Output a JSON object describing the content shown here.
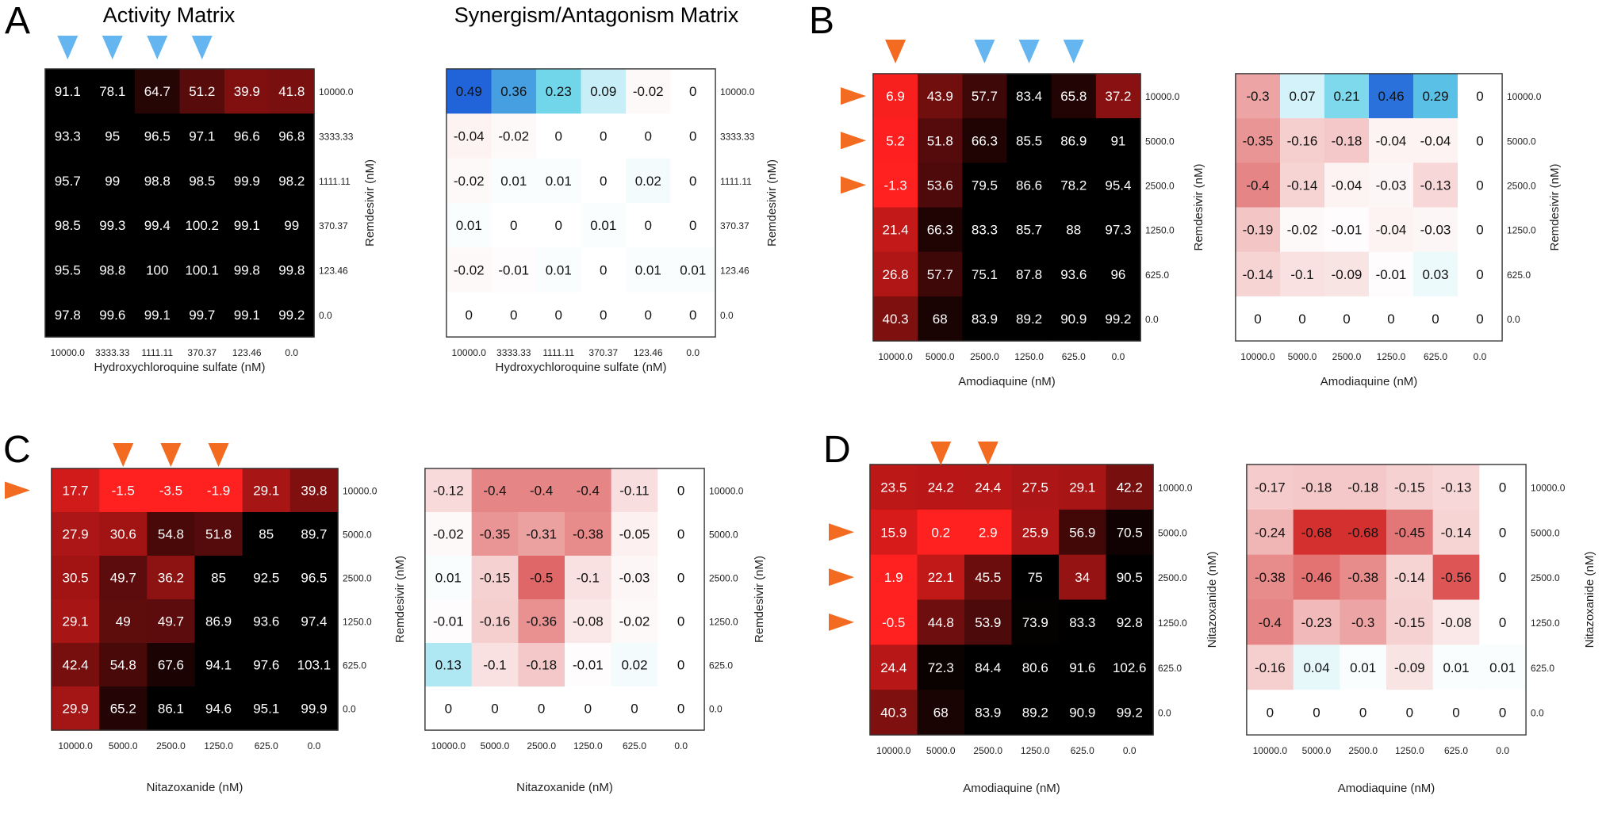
{
  "figure": {
    "panel_letters": [
      "A",
      "B",
      "C",
      "D"
    ],
    "headers": {
      "activity": "Activity Matrix",
      "synergy": "Synergism/Antagonism Matrix"
    },
    "colors": {
      "arrow_blue": "#64b5f0",
      "arrow_orange": "#f26b21",
      "activity_high": "#000000",
      "activity_low": "#ff2020",
      "synergy_pos": "#1e5fd8",
      "synergy_neg": "#d42a2a"
    }
  },
  "chart_data": [
    {
      "type": "heatmap",
      "panel": "A",
      "matrix": "activity",
      "xlabel": "Hydroxychloroquine sulfate (nM)",
      "ylabel": "Remdesivir (nM)",
      "x_ticks": [
        "10000.0",
        "3333.33",
        "1111.11",
        "370.37",
        "123.46",
        "0.0"
      ],
      "y_ticks": [
        "10000.0",
        "3333.33",
        "1111.11",
        "370.37",
        "123.46",
        "0.0"
      ],
      "values": [
        [
          91.1,
          78.1,
          64.7,
          51.2,
          39.9,
          41.8
        ],
        [
          93.3,
          95,
          96.5,
          97.1,
          96.6,
          96.8
        ],
        [
          95.7,
          99,
          98.8,
          98.5,
          99.9,
          98.2
        ],
        [
          98.5,
          99.3,
          99.4,
          100.2,
          99.1,
          99
        ],
        [
          95.5,
          98.8,
          100,
          100.1,
          99.8,
          99.8
        ],
        [
          97.8,
          99.6,
          99.1,
          99.7,
          99.1,
          99.2
        ]
      ],
      "markers_top": {
        "color": "blue",
        "columns": [
          0,
          1,
          2,
          3
        ]
      },
      "markers_left": {
        "color": "orange",
        "rows": []
      }
    },
    {
      "type": "heatmap",
      "panel": "A",
      "matrix": "synergy",
      "xlabel": "Hydroxychloroquine sulfate (nM)",
      "ylabel": "Remdesivir (nM)",
      "x_ticks": [
        "10000.0",
        "3333.33",
        "1111.11",
        "370.37",
        "123.46",
        "0.0"
      ],
      "y_ticks": [
        "10000.0",
        "3333.33",
        "1111.11",
        "370.37",
        "123.46",
        "0.0"
      ],
      "values": [
        [
          0.49,
          0.36,
          0.23,
          0.09,
          -0.02,
          0
        ],
        [
          -0.04,
          -0.02,
          0,
          0,
          0,
          0
        ],
        [
          -0.02,
          0.01,
          0.01,
          0,
          0.02,
          0
        ],
        [
          0.01,
          0,
          0,
          0.01,
          0,
          0
        ],
        [
          -0.02,
          -0.01,
          0.01,
          0,
          0.01,
          0.01
        ],
        [
          0,
          0,
          0,
          0,
          0,
          0
        ]
      ]
    },
    {
      "type": "heatmap",
      "panel": "B",
      "matrix": "activity",
      "xlabel": "Amodiaquine (nM)",
      "ylabel": "Remdesivir (nM)",
      "x_ticks": [
        "10000.0",
        "5000.0",
        "2500.0",
        "1250.0",
        "625.0",
        "0.0"
      ],
      "y_ticks": [
        "10000.0",
        "5000.0",
        "2500.0",
        "1250.0",
        "625.0",
        "0.0"
      ],
      "values": [
        [
          6.9,
          43.9,
          57.7,
          83.4,
          65.8,
          37.2
        ],
        [
          5.2,
          51.8,
          66.3,
          85.5,
          86.9,
          91
        ],
        [
          -1.3,
          53.6,
          79.5,
          86.6,
          78.2,
          95.4
        ],
        [
          21.4,
          66.3,
          83.3,
          85.7,
          88,
          97.3
        ],
        [
          26.8,
          57.7,
          75.1,
          87.8,
          93.6,
          96
        ],
        [
          40.3,
          68,
          83.9,
          89.2,
          90.9,
          99.2
        ]
      ],
      "markers_top": {
        "columns_orange": [
          0
        ],
        "columns_blue": [
          2,
          3,
          4
        ]
      },
      "markers_left": {
        "color": "orange",
        "rows": [
          0,
          1,
          2
        ]
      }
    },
    {
      "type": "heatmap",
      "panel": "B",
      "matrix": "synergy",
      "xlabel": "Amodiaquine (nM)",
      "ylabel": "Remdesivir (nM)",
      "x_ticks": [
        "10000.0",
        "5000.0",
        "2500.0",
        "1250.0",
        "625.0",
        "0.0"
      ],
      "y_ticks": [
        "10000.0",
        "5000.0",
        "2500.0",
        "1250.0",
        "625.0",
        "0.0"
      ],
      "values": [
        [
          -0.3,
          0.07,
          0.21,
          0.46,
          0.29,
          0
        ],
        [
          -0.35,
          -0.16,
          -0.18,
          -0.04,
          -0.04,
          0
        ],
        [
          -0.4,
          -0.14,
          -0.04,
          -0.03,
          -0.13,
          0
        ],
        [
          -0.19,
          -0.02,
          -0.01,
          -0.04,
          -0.03,
          0
        ],
        [
          -0.14,
          -0.1,
          -0.09,
          -0.01,
          0.03,
          0
        ],
        [
          0,
          0,
          0,
          0,
          0,
          0
        ]
      ]
    },
    {
      "type": "heatmap",
      "panel": "C",
      "matrix": "activity",
      "xlabel": "Nitazoxanide (nM)",
      "ylabel": "Remdesivir (nM)",
      "x_ticks": [
        "10000.0",
        "5000.0",
        "2500.0",
        "1250.0",
        "625.0",
        "0.0"
      ],
      "y_ticks": [
        "10000.0",
        "5000.0",
        "2500.0",
        "1250.0",
        "625.0",
        "0.0"
      ],
      "values": [
        [
          17.7,
          -1.5,
          -3.5,
          -1.9,
          29.1,
          39.8
        ],
        [
          27.9,
          30.6,
          54.8,
          51.8,
          85,
          89.7
        ],
        [
          30.5,
          49.7,
          36.2,
          85,
          92.5,
          96.5
        ],
        [
          29.1,
          49,
          49.7,
          86.9,
          93.6,
          97.4
        ],
        [
          42.4,
          54.8,
          67.6,
          94.1,
          97.6,
          103.1
        ],
        [
          29.9,
          65.2,
          86.1,
          94.6,
          95.1,
          99.9
        ]
      ],
      "markers_top": {
        "color": "orange",
        "columns": [
          1,
          2,
          3
        ]
      },
      "markers_left": {
        "color": "orange",
        "rows": [
          0
        ]
      }
    },
    {
      "type": "heatmap",
      "panel": "C",
      "matrix": "synergy",
      "xlabel": "Nitazoxanide (nM)",
      "ylabel": "Remdesivir (nM)",
      "x_ticks": [
        "10000.0",
        "5000.0",
        "2500.0",
        "1250.0",
        "625.0",
        "0.0"
      ],
      "y_ticks": [
        "10000.0",
        "5000.0",
        "2500.0",
        "1250.0",
        "625.0",
        "0.0"
      ],
      "values": [
        [
          -0.12,
          -0.4,
          -0.4,
          -0.4,
          -0.11,
          0
        ],
        [
          -0.02,
          -0.35,
          -0.31,
          -0.38,
          -0.05,
          0
        ],
        [
          0.01,
          -0.15,
          -0.5,
          -0.1,
          -0.03,
          0
        ],
        [
          -0.01,
          -0.16,
          -0.36,
          -0.08,
          -0.02,
          0
        ],
        [
          0.13,
          -0.1,
          -0.18,
          -0.01,
          0.02,
          0
        ],
        [
          0,
          0,
          0,
          0,
          0,
          0
        ]
      ]
    },
    {
      "type": "heatmap",
      "panel": "D",
      "matrix": "activity",
      "xlabel": "Amodiaquine (nM)",
      "ylabel": "Nitazoxanide (nM)",
      "x_ticks": [
        "10000.0",
        "5000.0",
        "2500.0",
        "1250.0",
        "625.0",
        "0.0"
      ],
      "y_ticks": [
        "10000.0",
        "5000.0",
        "2500.0",
        "1250.0",
        "625.0",
        "0.0"
      ],
      "values": [
        [
          23.5,
          24.2,
          24.4,
          27.5,
          29.1,
          42.2
        ],
        [
          15.9,
          0.2,
          2.9,
          25.9,
          56.9,
          70.5
        ],
        [
          1.9,
          22.1,
          45.5,
          75,
          34,
          90.5
        ],
        [
          -0.5,
          44.8,
          53.9,
          73.9,
          83.3,
          92.8
        ],
        [
          24.4,
          72.3,
          84.4,
          80.6,
          91.6,
          102.6
        ],
        [
          40.3,
          68,
          83.9,
          89.2,
          90.9,
          99.2
        ]
      ],
      "markers_top": {
        "color": "orange",
        "columns": [
          1,
          2
        ]
      },
      "markers_left": {
        "color": "orange",
        "rows": [
          1,
          2,
          3
        ]
      }
    },
    {
      "type": "heatmap",
      "panel": "D",
      "matrix": "synergy",
      "xlabel": "Amodiaquine (nM)",
      "ylabel": "Nitazoxanide (nM)",
      "x_ticks": [
        "10000.0",
        "5000.0",
        "2500.0",
        "1250.0",
        "625.0",
        "0.0"
      ],
      "y_ticks": [
        "10000.0",
        "5000.0",
        "2500.0",
        "1250.0",
        "625.0",
        "0.0"
      ],
      "values": [
        [
          -0.17,
          -0.18,
          -0.18,
          -0.15,
          -0.13,
          0
        ],
        [
          -0.24,
          -0.68,
          -0.68,
          -0.45,
          -0.14,
          0
        ],
        [
          -0.38,
          -0.46,
          -0.38,
          -0.14,
          -0.56,
          0
        ],
        [
          -0.4,
          -0.23,
          -0.3,
          -0.15,
          -0.08,
          0
        ],
        [
          -0.16,
          0.04,
          0.01,
          -0.09,
          0.01,
          0.01
        ],
        [
          0,
          0,
          0,
          0,
          0,
          0
        ]
      ]
    }
  ]
}
